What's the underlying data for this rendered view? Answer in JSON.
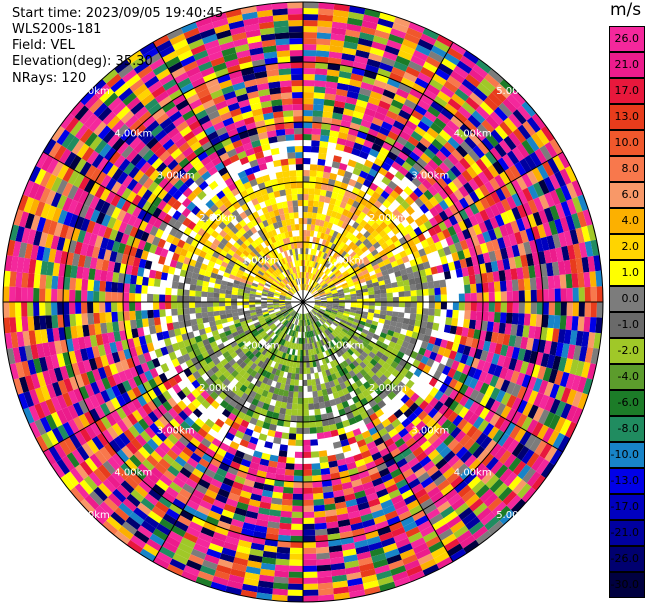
{
  "header": {
    "start_time": "Start time: 2023/09/05 19:40:45",
    "device": "WLS200s-181",
    "field": "Field: VEL",
    "elevation": "Elevation(deg): 35.30",
    "nrays": "NRays: 120"
  },
  "colorbar": {
    "unit": "m/s",
    "ticks": [
      "26.0",
      "21.0",
      "17.0",
      "13.0",
      "10.0",
      "8.0",
      "6.0",
      "4.0",
      "2.0",
      "1.0",
      "0.0",
      "-1.0",
      "-2.0",
      "-4.0",
      "-6.0",
      "-8.0",
      "-10.0",
      "-13.0",
      "-17.0",
      "-21.0",
      "-26.0",
      "-30.0"
    ],
    "colors": [
      "#f4289c",
      "#ec1c8c",
      "#e8183c",
      "#e83c1c",
      "#f0582c",
      "#f8784c",
      "#f89868",
      "#fcb000",
      "#ffd400",
      "#ffff00",
      "#7c7c7c",
      "#6a6a6a",
      "#a0c828",
      "#5c9c2c",
      "#1c7c28",
      "#208c60",
      "#1884c8",
      "#0000e8",
      "#0000c0",
      "#0000a0",
      "#000070",
      "#000040"
    ]
  },
  "chart_data": {
    "type": "heatmap",
    "field": "VEL",
    "unit": "m/s",
    "rays": 120,
    "range_ring_labels": [
      "1.00km",
      "2.00km",
      "3.00km",
      "4.00km",
      "5.00km"
    ],
    "range_rings_km": [
      1,
      2,
      3,
      4,
      5
    ],
    "value_range": [
      -30,
      26
    ],
    "pattern": "near-range: positive (yellow/orange, 1-6 m/s) toward north, negative (green, -1 to -8 m/s) toward south, ~0 (gray) east-west; beyond ~2.5 km noisy values spanning full range"
  }
}
